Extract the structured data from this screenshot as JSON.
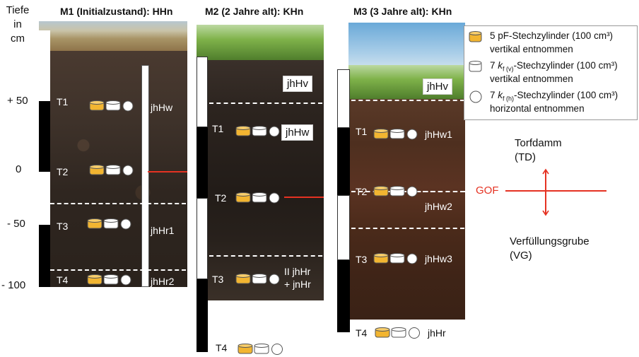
{
  "axis": {
    "title_line1": "Tiefe",
    "title_line2": "in",
    "title_line3": "cm",
    "ticks": [
      "+ 50",
      "0",
      "- 50",
      "- 100"
    ]
  },
  "profiles": [
    {
      "title": "M1 (Initialzustand):  HHn",
      "samples": [
        "T1",
        "T2",
        "T3",
        "T4"
      ],
      "horizons": [
        "jhHw",
        "jhHr1",
        "jhHr2"
      ]
    },
    {
      "title": "M2 (2 Jahre alt):  KHn",
      "samples": [
        "T1",
        "T2",
        "T3",
        "T4"
      ],
      "horizons": [
        "jhHv",
        "jhHw",
        "II jhHr",
        "+ jnHr"
      ]
    },
    {
      "title": "M3 (3 Jahre alt):  KHn",
      "samples": [
        "T1",
        "T2",
        "T3",
        "T4"
      ],
      "horizons": [
        "jhHv",
        "jhHw1",
        "jhHw2",
        "jhHw3",
        "jhHr"
      ]
    }
  ],
  "legend": [
    {
      "text1": "5 pF-Stechzylinder (100 cm³)",
      "text2": "vertikal entnommen",
      "icon": "orange-cylinder-icon"
    },
    {
      "text1": "7 kf (v)-Stechzylinder (100 cm³)",
      "text2": "vertikal entnommen",
      "icon": "white-cylinder-icon"
    },
    {
      "text1": "7 kf (h)-Stechzylinder (100 cm³)",
      "text2": "horizontal entnommen",
      "icon": "white-circle-icon"
    }
  ],
  "legend_parts": {
    "kv_prefix": "7 ",
    "kv_k": "k",
    "kv_sub": "f (v)",
    "kv_rest": "-Stechzylinder (100 cm³)",
    "kh_prefix": "7 ",
    "kh_k": "k",
    "kh_sub": "f (h)",
    "kh_rest": "-Stechzylinder (100 cm³)"
  },
  "right_panel": {
    "top_label1": "Torfdamm",
    "top_label2": "(TD)",
    "gof": "GOF",
    "bottom_label1": "Verfüllungsgrube",
    "bottom_label2": "(VG)"
  },
  "colors": {
    "orange": "#f2b531",
    "gof_red": "#e53222"
  }
}
